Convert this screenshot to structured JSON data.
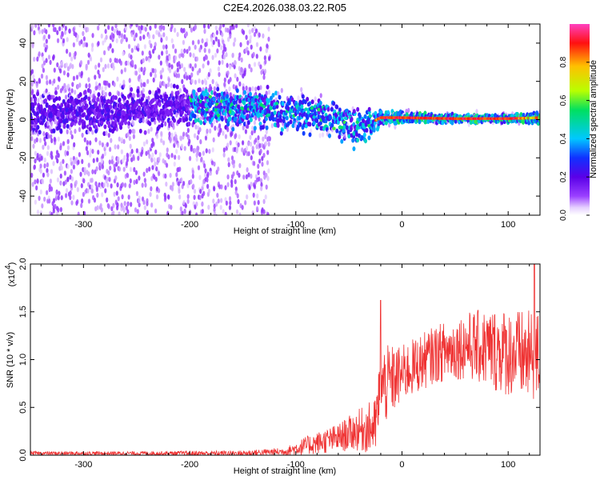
{
  "chart_data": [
    {
      "type": "heatmap",
      "title": "C2E4.2026.038.03.22.R05",
      "xlabel": "Height of straight line (km)",
      "ylabel": "Frequency (Hz)",
      "xlim": [
        -350,
        130
      ],
      "ylim": [
        -50,
        50
      ],
      "x_ticks": [
        -300,
        -200,
        -100,
        0,
        100
      ],
      "y_ticks": [
        -40,
        -20,
        0,
        20,
        40
      ],
      "colorbar": {
        "label": "Normalized spectral amplitude",
        "range": [
          0,
          1
        ],
        "ticks": [
          "0.0",
          "0.2",
          "0.4",
          "0.6",
          "0.8"
        ]
      },
      "description_points": [
        {
          "x": -350,
          "center": 3,
          "spread": 45
        },
        {
          "x": -250,
          "center": 5,
          "spread": 45
        },
        {
          "x": -200,
          "center": 7,
          "spread": 40
        },
        {
          "x": -130,
          "center": 6,
          "spread": 42
        },
        {
          "x": -120,
          "center": 4,
          "spread": 10
        },
        {
          "x": -80,
          "center": 2,
          "spread": 9
        },
        {
          "x": -40,
          "center": -5,
          "spread": 10
        },
        {
          "x": -20,
          "center": 1,
          "spread": 4
        },
        {
          "x": 0,
          "center": 1,
          "spread": 3
        },
        {
          "x": 50,
          "center": 0.5,
          "spread": 2
        },
        {
          "x": 100,
          "center": 0.5,
          "spread": 2
        },
        {
          "x": 130,
          "center": 1,
          "spread": 3
        }
      ]
    },
    {
      "type": "line",
      "xlabel": "Height of straight line (km)",
      "ylabel": "SNR (10 * v/v)",
      "y_multiplier_label": "(x10",
      "y_multiplier_exp": "4",
      "y_multiplier_close": ")",
      "xlim": [
        -350,
        130
      ],
      "ylim": [
        0,
        2.0
      ],
      "x_ticks": [
        -300,
        -200,
        -100,
        0,
        100
      ],
      "y_ticks": [
        "0.0",
        "0.5",
        "1.0",
        "1.5",
        "2.0"
      ],
      "series": [
        {
          "color": "#ef3232",
          "envelope": [
            {
              "x": -350,
              "mean": 0.02,
              "noise": 0.02
            },
            {
              "x": -250,
              "mean": 0.02,
              "noise": 0.02
            },
            {
              "x": -150,
              "mean": 0.02,
              "noise": 0.03
            },
            {
              "x": -110,
              "mean": 0.04,
              "noise": 0.04
            },
            {
              "x": -90,
              "mean": 0.1,
              "noise": 0.1
            },
            {
              "x": -60,
              "mean": 0.18,
              "noise": 0.15
            },
            {
              "x": -45,
              "mean": 0.25,
              "noise": 0.2
            },
            {
              "x": -25,
              "mean": 0.3,
              "noise": 0.3
            },
            {
              "x": -20,
              "mean": 0.7,
              "noise": 0.45
            },
            {
              "x": 0,
              "mean": 0.85,
              "noise": 0.3
            },
            {
              "x": 30,
              "mean": 1.05,
              "noise": 0.3
            },
            {
              "x": 60,
              "mean": 1.15,
              "noise": 0.35
            },
            {
              "x": 90,
              "mean": 1.1,
              "noise": 0.45
            },
            {
              "x": 130,
              "mean": 1.0,
              "noise": 0.5
            }
          ]
        }
      ]
    }
  ]
}
